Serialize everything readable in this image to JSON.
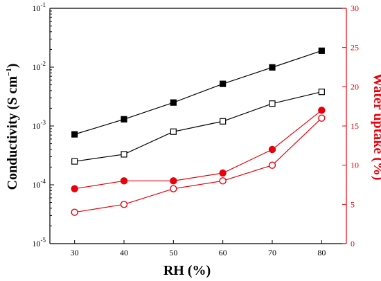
{
  "chart_data": {
    "type": "line",
    "xlabel": "RH (%)",
    "ylabel_left": "Conductivity (S cm",
    "ylabel_left_exponent": "−1",
    "ylabel_left_close": ")",
    "ylabel_right": "Water uptake (%)",
    "x": [
      30,
      40,
      50,
      60,
      70,
      80
    ],
    "x_ticks": [
      30,
      40,
      50,
      60,
      70,
      80
    ],
    "xlim": [
      25,
      85
    ],
    "y_left": {
      "scale": "log",
      "lim": [
        1e-05,
        0.1
      ],
      "tick_exponents": [
        -5,
        -4,
        -3,
        -2,
        -1
      ],
      "tick_base": "10"
    },
    "y_right": {
      "scale": "linear",
      "lim": [
        0,
        30
      ],
      "ticks": [
        0,
        5,
        10,
        15,
        20,
        25,
        30
      ]
    },
    "series": [
      {
        "axis": "left",
        "marker": "filled-square",
        "color": "#000000",
        "values": [
          0.00072,
          0.0013,
          0.0025,
          0.0052,
          0.0099,
          0.019
        ]
      },
      {
        "axis": "left",
        "marker": "open-square",
        "color": "#000000",
        "values": [
          0.00025,
          0.00033,
          0.0008,
          0.0012,
          0.0024,
          0.0038
        ]
      },
      {
        "axis": "right",
        "marker": "filled-circle",
        "color": "#e8000b",
        "values": [
          7,
          8,
          8,
          9,
          12,
          17
        ]
      },
      {
        "axis": "right",
        "marker": "open-circle",
        "color": "#e8000b",
        "values": [
          4,
          5,
          7,
          8,
          10,
          16
        ]
      }
    ],
    "colors": {
      "left_axis": "#000000",
      "right_axis": "#e8000b"
    }
  }
}
